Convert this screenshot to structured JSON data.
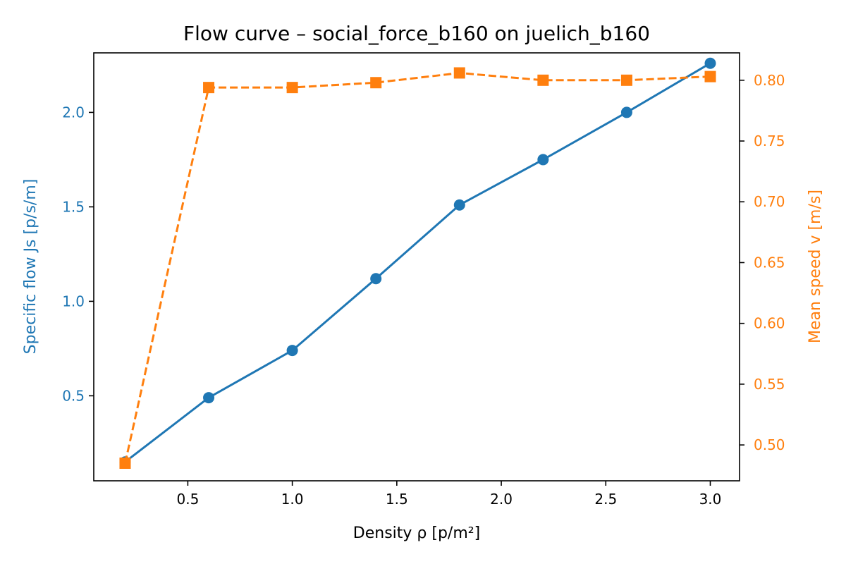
{
  "chart_data": {
    "type": "line",
    "title": "Flow curve – social_force_b160 on juelich_b160",
    "xlabel": "Density ρ [p/m²]",
    "ylabel": "Specific flow Js [p/s/m]",
    "y2label": "Mean speed v [m/s]",
    "x": [
      0.2,
      0.6,
      1.0,
      1.4,
      1.8,
      2.2,
      2.6,
      3.0
    ],
    "xlim": [
      0.05,
      3.14
    ],
    "ylim": [
      0.05,
      2.315
    ],
    "y2lim": [
      0.4705,
      0.8225
    ],
    "xticks": [
      "0.5",
      "1.0",
      "1.5",
      "2.0",
      "2.5",
      "3.0"
    ],
    "yticks": [
      "0.5",
      "1.0",
      "1.5",
      "2.0"
    ],
    "y2ticks": [
      "0.50",
      "0.55",
      "0.60",
      "0.65",
      "0.70",
      "0.75",
      "0.80"
    ],
    "grid": false,
    "series": [
      {
        "axis": "left",
        "color": "#1f77b4",
        "marker": "circle",
        "linestyle": "solid",
        "values": [
          0.15,
          0.49,
          0.74,
          1.12,
          1.51,
          1.75,
          2.0,
          2.26
        ]
      },
      {
        "axis": "right",
        "color": "#ff7f0e",
        "marker": "square",
        "linestyle": "dashed",
        "values": [
          0.485,
          0.794,
          0.794,
          0.798,
          0.806,
          0.8,
          0.8,
          0.803
        ]
      }
    ]
  }
}
